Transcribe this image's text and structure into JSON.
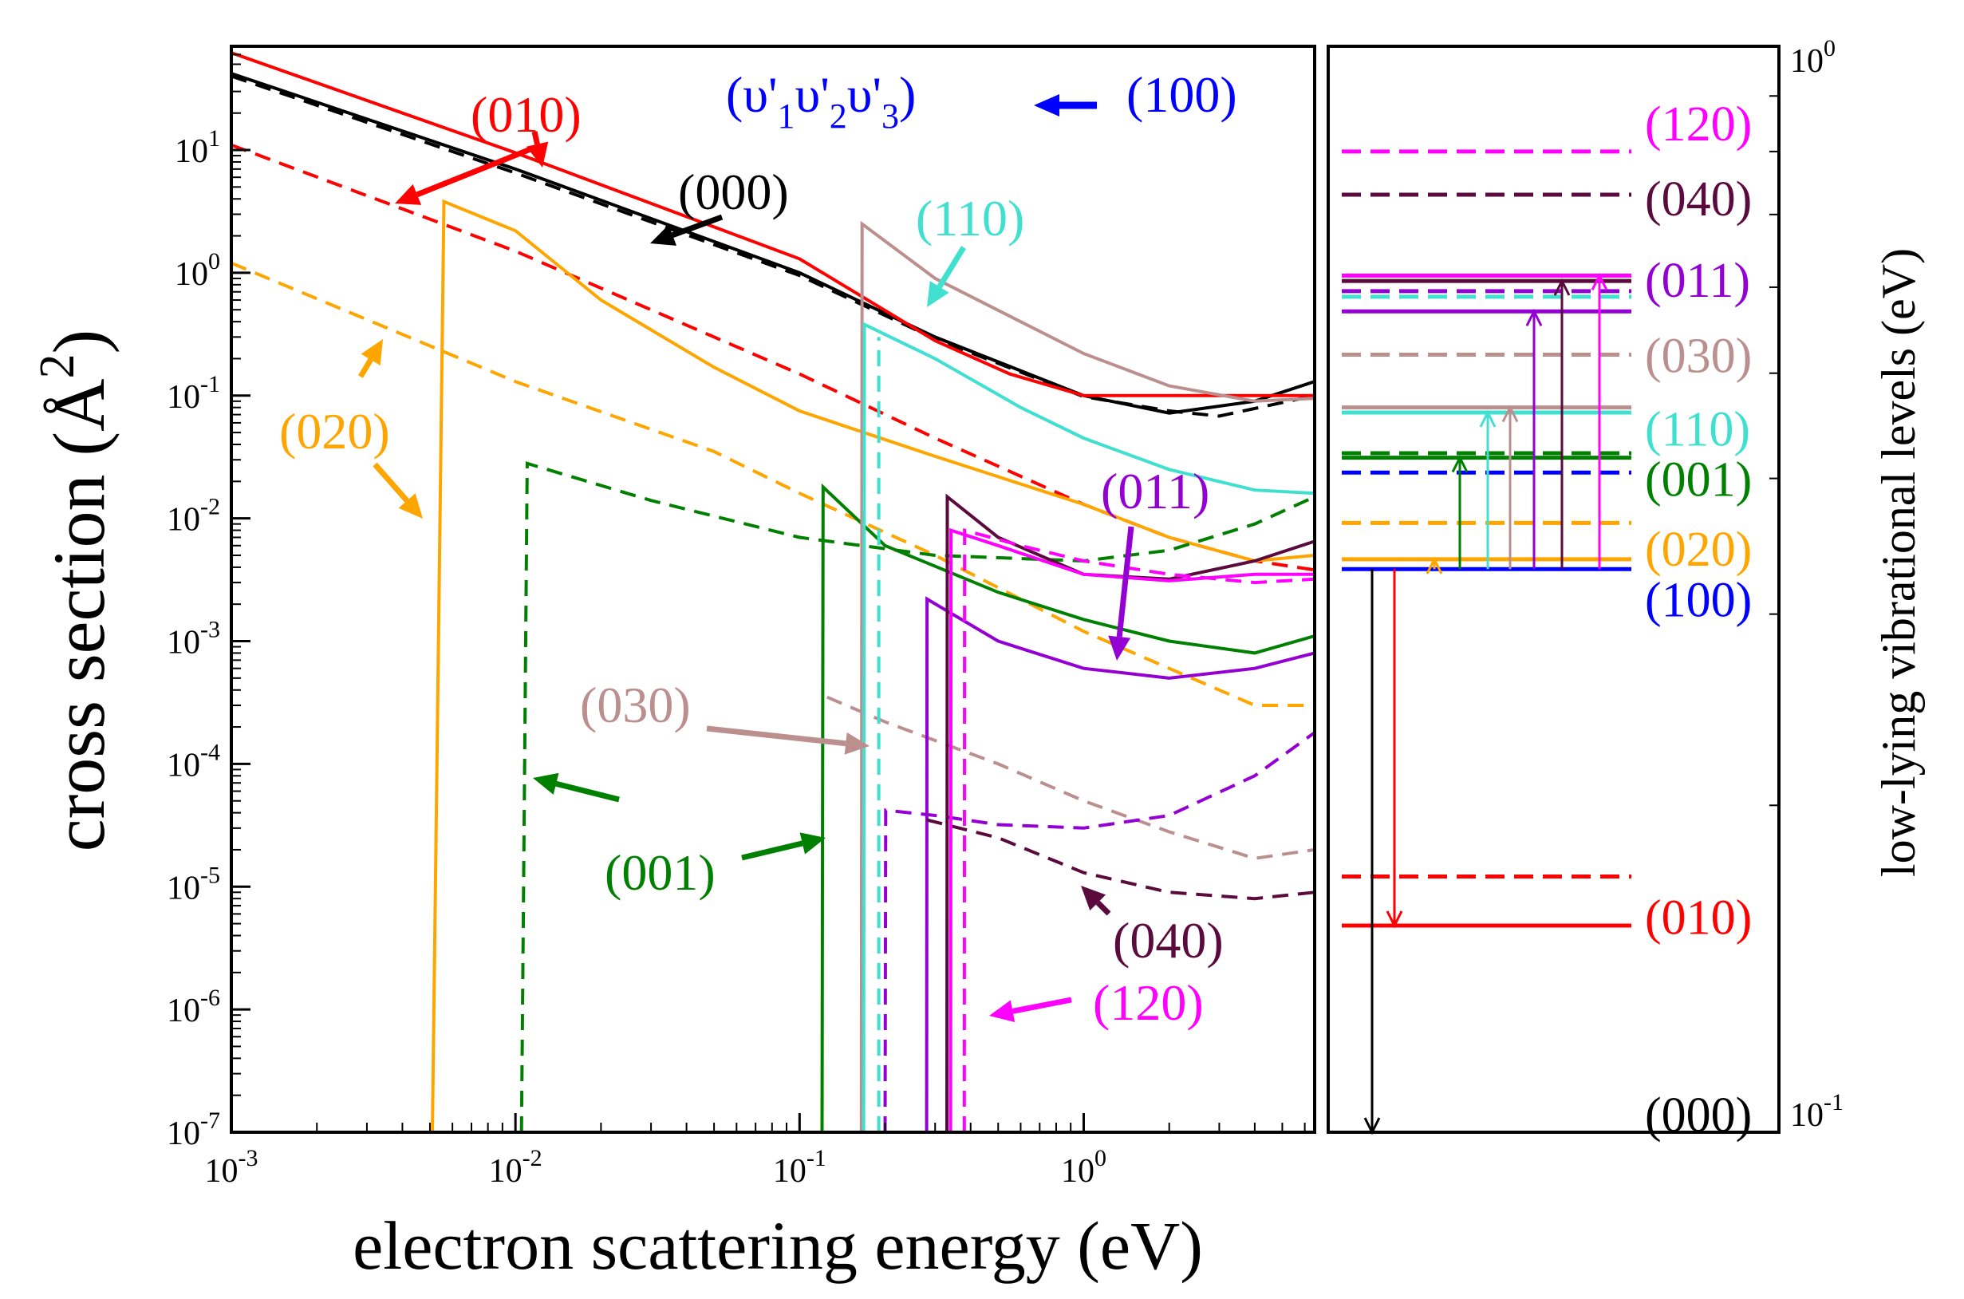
{
  "colors": {
    "red": "#ff0000",
    "black": "#000000",
    "orange": "#ffa500",
    "green": "#008000",
    "brown": "#bc8f8f",
    "cyan": "#40e0d0",
    "violet": "#9400d3",
    "maroon": "#5a0a3c",
    "magenta": "#ff00ff",
    "blue": "#0000ff"
  },
  "chart_data": [
    {
      "type": "line",
      "xscale": "log",
      "yscale": "log",
      "xlim": [
        0.001,
        6.5
      ],
      "ylim": [
        1e-07,
        70
      ],
      "xlabel": "electron scattering energy (eV)",
      "ylabel_main": "cross section (",
      "ylabel_unit": "Å",
      "ylabel_exp": "2",
      "ylabel_close": ")",
      "xticks": [
        {
          "base": "10",
          "exp": "-3",
          "v": 0.001
        },
        {
          "base": "10",
          "exp": "-2",
          "v": 0.01
        },
        {
          "base": "10",
          "exp": "-1",
          "v": 0.1
        },
        {
          "base": "10",
          "exp": "0",
          "v": 1
        }
      ],
      "yticks": [
        {
          "base": "10",
          "exp": "-7",
          "v": 1e-07
        },
        {
          "base": "10",
          "exp": "-6",
          "v": 1e-06
        },
        {
          "base": "10",
          "exp": "-5",
          "v": 1e-05
        },
        {
          "base": "10",
          "exp": "-4",
          "v": 0.0001
        },
        {
          "base": "10",
          "exp": "-3",
          "v": 0.001
        },
        {
          "base": "10",
          "exp": "-2",
          "v": 0.01
        },
        {
          "base": "10",
          "exp": "-1",
          "v": 0.1
        },
        {
          "base": "10",
          "exp": "0",
          "v": 1
        },
        {
          "base": "10",
          "exp": "1",
          "v": 10
        }
      ],
      "legend_title": "(υ'1υ'2υ'3)",
      "legend_title_parts": {
        "o": "(υ'",
        "s1": "1",
        "m1": "υ'",
        "s2": "2",
        "m2": "υ'",
        "s3": "3",
        "c": ")"
      },
      "legend_current": "(100)",
      "series": [
        {
          "name": "(000)",
          "color": "black",
          "dash": false,
          "points": [
            [
              0.001,
              42
            ],
            [
              0.01,
              7
            ],
            [
              0.1,
              1.0
            ],
            [
              0.3,
              0.3
            ],
            [
              1,
              0.1
            ],
            [
              2,
              0.072
            ],
            [
              4,
              0.09
            ],
            [
              6.5,
              0.13
            ]
          ]
        },
        {
          "name": "(000)",
          "color": "black",
          "dash": true,
          "points": [
            [
              0.001,
              40
            ],
            [
              0.01,
              6.5
            ],
            [
              0.1,
              0.95
            ],
            [
              0.3,
              0.29
            ],
            [
              1,
              0.098
            ],
            [
              2,
              0.075
            ],
            [
              3,
              0.068
            ],
            [
              6.5,
              0.1
            ]
          ]
        },
        {
          "name": "(010)",
          "color": "red",
          "dash": false,
          "points": [
            [
              0.001,
              62
            ],
            [
              0.01,
              9.5
            ],
            [
              0.1,
              1.3
            ],
            [
              0.3,
              0.28
            ],
            [
              0.55,
              0.15
            ],
            [
              1,
              0.1
            ],
            [
              2,
              0.1
            ],
            [
              6.5,
              0.1
            ]
          ]
        },
        {
          "name": "(010)",
          "color": "red",
          "dash": true,
          "points": [
            [
              0.001,
              11
            ],
            [
              0.01,
              1.5
            ],
            [
              0.1,
              0.15
            ],
            [
              0.3,
              0.045
            ],
            [
              1,
              0.013
            ],
            [
              2,
              0.007
            ],
            [
              4,
              0.0045
            ],
            [
              6.5,
              0.0038
            ]
          ]
        },
        {
          "name": "(020)",
          "color": "orange",
          "dash": false,
          "points": [
            [
              0.0051,
              1e-07
            ],
            [
              0.0056,
              3.8
            ],
            [
              0.01,
              2.2
            ],
            [
              0.02,
              0.6
            ],
            [
              0.05,
              0.17
            ],
            [
              0.1,
              0.075
            ],
            [
              0.3,
              0.032
            ],
            [
              1,
              0.013
            ],
            [
              2,
              0.007
            ],
            [
              4,
              0.0045
            ],
            [
              6.5,
              0.005
            ]
          ]
        },
        {
          "name": "(020)",
          "color": "orange",
          "dash": true,
          "points": [
            [
              0.001,
              1.2
            ],
            [
              0.01,
              0.13
            ],
            [
              0.05,
              0.035
            ],
            [
              0.1,
              0.016
            ],
            [
              0.3,
              0.005
            ],
            [
              1,
              0.0012
            ],
            [
              2,
              0.0006
            ],
            [
              4,
              0.0003
            ],
            [
              6.5,
              0.0003
            ]
          ]
        },
        {
          "name": "(001)",
          "color": "green",
          "dash": false,
          "points": [
            [
              0.12,
              1e-07
            ],
            [
              0.121,
              0.018
            ],
            [
              0.2,
              0.006
            ],
            [
              0.5,
              0.0025
            ],
            [
              1,
              0.0015
            ],
            [
              2,
              0.001
            ],
            [
              4,
              0.0008
            ],
            [
              6.5,
              0.0011
            ]
          ]
        },
        {
          "name": "(001)",
          "color": "green",
          "dash": true,
          "points": [
            [
              0.0105,
              1e-07
            ],
            [
              0.011,
              0.028
            ],
            [
              0.03,
              0.014
            ],
            [
              0.1,
              0.007
            ],
            [
              0.3,
              0.005
            ],
            [
              1,
              0.0045
            ],
            [
              2,
              0.0055
            ],
            [
              4,
              0.009
            ],
            [
              6.5,
              0.015
            ]
          ]
        },
        {
          "name": "(030)",
          "color": "brown",
          "dash": false,
          "points": [
            [
              0.165,
              1e-07
            ],
            [
              0.166,
              2.5
            ],
            [
              0.3,
              0.9
            ],
            [
              1,
              0.22
            ],
            [
              2,
              0.12
            ],
            [
              4,
              0.09
            ],
            [
              6.5,
              0.095
            ]
          ]
        },
        {
          "name": "(030)",
          "color": "brown",
          "dash": true,
          "points": [
            [
              0.125,
              0.00035
            ],
            [
              0.2,
              0.00022
            ],
            [
              0.5,
              0.0001
            ],
            [
              1,
              5e-05
            ],
            [
              2,
              2.8e-05
            ],
            [
              4,
              1.7e-05
            ],
            [
              6.5,
              2e-05
            ]
          ]
        },
        {
          "name": "(110)",
          "color": "cyan",
          "dash": false,
          "points": [
            [
              0.168,
              1e-07
            ],
            [
              0.169,
              0.38
            ],
            [
              0.3,
              0.2
            ],
            [
              0.6,
              0.08
            ],
            [
              1,
              0.045
            ],
            [
              2,
              0.025
            ],
            [
              4,
              0.017
            ],
            [
              6.5,
              0.016
            ]
          ]
        },
        {
          "name": "(110)",
          "color": "cyan",
          "dash": true,
          "points": [
            [
              0.19,
              1e-07
            ],
            [
              0.19,
              0.3
            ]
          ]
        },
        {
          "name": "(011)",
          "color": "violet",
          "dash": false,
          "points": [
            [
              0.28,
              1e-07
            ],
            [
              0.281,
              0.0022
            ],
            [
              0.5,
              0.001
            ],
            [
              1,
              0.0006
            ],
            [
              2,
              0.0005
            ],
            [
              4,
              0.0006
            ],
            [
              6.5,
              0.0008
            ]
          ]
        },
        {
          "name": "(011)",
          "color": "violet",
          "dash": true,
          "points": [
            [
              0.2,
              1e-07
            ],
            [
              0.201,
              4.2e-05
            ],
            [
              0.3,
              3.8e-05
            ],
            [
              0.5,
              3.2e-05
            ],
            [
              1,
              3e-05
            ],
            [
              2,
              3.8e-05
            ],
            [
              4,
              8e-05
            ],
            [
              6.5,
              0.00018
            ]
          ]
        },
        {
          "name": "(040)",
          "color": "maroon",
          "dash": false,
          "points": [
            [
              0.33,
              1e-07
            ],
            [
              0.331,
              0.015
            ],
            [
              0.5,
              0.007
            ],
            [
              1,
              0.0035
            ],
            [
              2,
              0.0032
            ],
            [
              4,
              0.0045
            ],
            [
              6.5,
              0.0065
            ]
          ]
        },
        {
          "name": "(040)",
          "color": "maroon",
          "dash": true,
          "points": [
            [
              0.28,
              3.5e-05
            ],
            [
              0.5,
              2.5e-05
            ],
            [
              1,
              1.3e-05
            ],
            [
              2,
              9e-06
            ],
            [
              4,
              8e-06
            ],
            [
              6.5,
              9e-06
            ]
          ]
        },
        {
          "name": "(120)",
          "color": "magenta",
          "dash": false,
          "points": [
            [
              0.34,
              1e-07
            ],
            [
              0.341,
              0.008
            ],
            [
              0.5,
              0.006
            ],
            [
              1,
              0.0035
            ],
            [
              2,
              0.0031
            ],
            [
              4,
              0.0035
            ],
            [
              6.5,
              0.0035
            ]
          ]
        },
        {
          "name": "(120)",
          "color": "magenta",
          "dash": true,
          "points": [
            [
              0.38,
              1e-07
            ],
            [
              0.381,
              0.008
            ],
            [
              0.6,
              0.006
            ],
            [
              1,
              0.0045
            ],
            [
              2,
              0.0035
            ],
            [
              4,
              0.003
            ],
            [
              6.5,
              0.0032
            ]
          ]
        }
      ],
      "annotations": [
        {
          "text": "(010)",
          "color": "red"
        },
        {
          "text": "(000)",
          "color": "black"
        },
        {
          "text": "(110)",
          "color": "cyan"
        },
        {
          "text": "(020)",
          "color": "orange"
        },
        {
          "text": "(011)",
          "color": "violet"
        },
        {
          "text": "(030)",
          "color": "brown"
        },
        {
          "text": "(001)",
          "color": "green"
        },
        {
          "text": "(040)",
          "color": "maroon"
        },
        {
          "text": "(120)",
          "color": "magenta"
        }
      ]
    },
    {
      "type": "line",
      "subtype": "energy-level-diagram",
      "yscale": "log",
      "ylim": [
        0.1,
        1.0
      ],
      "ylabel": "low-lying vibrational levels (eV)",
      "yticks": [
        {
          "base": "10",
          "exp": "-1",
          "v": 0.1
        },
        {
          "base": "10",
          "exp": "0",
          "v": 1
        }
      ],
      "levels": [
        {
          "state": "(120)",
          "energy": 0.8,
          "color": "magenta",
          "dash": true
        },
        {
          "state": "(040)",
          "energy": 0.73,
          "color": "maroon",
          "dash": true
        },
        {
          "state": "(011)",
          "energy": 0.615,
          "color": "magenta",
          "dash": false
        },
        {
          "state": "(011)",
          "energy": 0.608,
          "color": "maroon",
          "dash": false
        },
        {
          "state": "(011)",
          "energy": 0.595,
          "color": "violet",
          "dash": true
        },
        {
          "state": "(011)",
          "energy": 0.588,
          "color": "cyan",
          "dash": true
        },
        {
          "state": "(011)",
          "energy": 0.57,
          "color": "violet",
          "dash": false
        },
        {
          "state": "(030)",
          "energy": 0.52,
          "color": "brown",
          "dash": true
        },
        {
          "state": "(110)",
          "energy": 0.465,
          "color": "brown",
          "dash": false
        },
        {
          "state": "(110)",
          "energy": 0.46,
          "color": "cyan",
          "dash": false
        },
        {
          "state": "(001)",
          "energy": 0.422,
          "color": "green",
          "dash": true
        },
        {
          "state": "(001)",
          "energy": 0.418,
          "color": "green",
          "dash": false
        },
        {
          "state": "(001)",
          "energy": 0.405,
          "color": "blue",
          "dash": true
        },
        {
          "state": "(020)",
          "energy": 0.364,
          "color": "orange",
          "dash": true
        },
        {
          "state": "(100)",
          "energy": 0.337,
          "color": "orange",
          "dash": false
        },
        {
          "state": "(100)",
          "energy": 0.33,
          "color": "blue",
          "dash": false
        },
        {
          "state": "(010)",
          "energy": 0.172,
          "color": "red",
          "dash": true
        },
        {
          "state": "(010)",
          "energy": 0.155,
          "color": "red",
          "dash": false
        }
      ],
      "level_labels": [
        {
          "text": "(120)",
          "color": "magenta",
          "energy": 0.85
        },
        {
          "text": "(040)",
          "color": "maroon",
          "energy": 0.725
        },
        {
          "text": "(011)",
          "color": "violet",
          "energy": 0.61
        },
        {
          "text": "(030)",
          "color": "brown",
          "energy": 0.52
        },
        {
          "text": "(110)",
          "color": "cyan",
          "energy": 0.445
        },
        {
          "text": "(001)",
          "color": "green",
          "energy": 0.4
        },
        {
          "text": "(020)",
          "color": "orange",
          "energy": 0.345
        },
        {
          "text": "(100)",
          "color": "blue",
          "energy": 0.31
        },
        {
          "text": "(010)",
          "color": "red",
          "energy": 0.158
        },
        {
          "text": "(000)",
          "color": "black",
          "energy": 0.104
        }
      ],
      "transitions": [
        {
          "color": "black",
          "from": 0.33,
          "to": 0.1
        },
        {
          "color": "red",
          "from": 0.33,
          "to": 0.155
        },
        {
          "color": "orange",
          "from": 0.33,
          "to": 0.337
        },
        {
          "color": "green",
          "from": 0.33,
          "to": 0.418
        },
        {
          "color": "cyan",
          "from": 0.33,
          "to": 0.46
        },
        {
          "color": "brown",
          "from": 0.33,
          "to": 0.465
        },
        {
          "color": "violet",
          "from": 0.33,
          "to": 0.57
        },
        {
          "color": "maroon",
          "from": 0.33,
          "to": 0.608
        },
        {
          "color": "magenta",
          "from": 0.33,
          "to": 0.615
        }
      ]
    }
  ]
}
